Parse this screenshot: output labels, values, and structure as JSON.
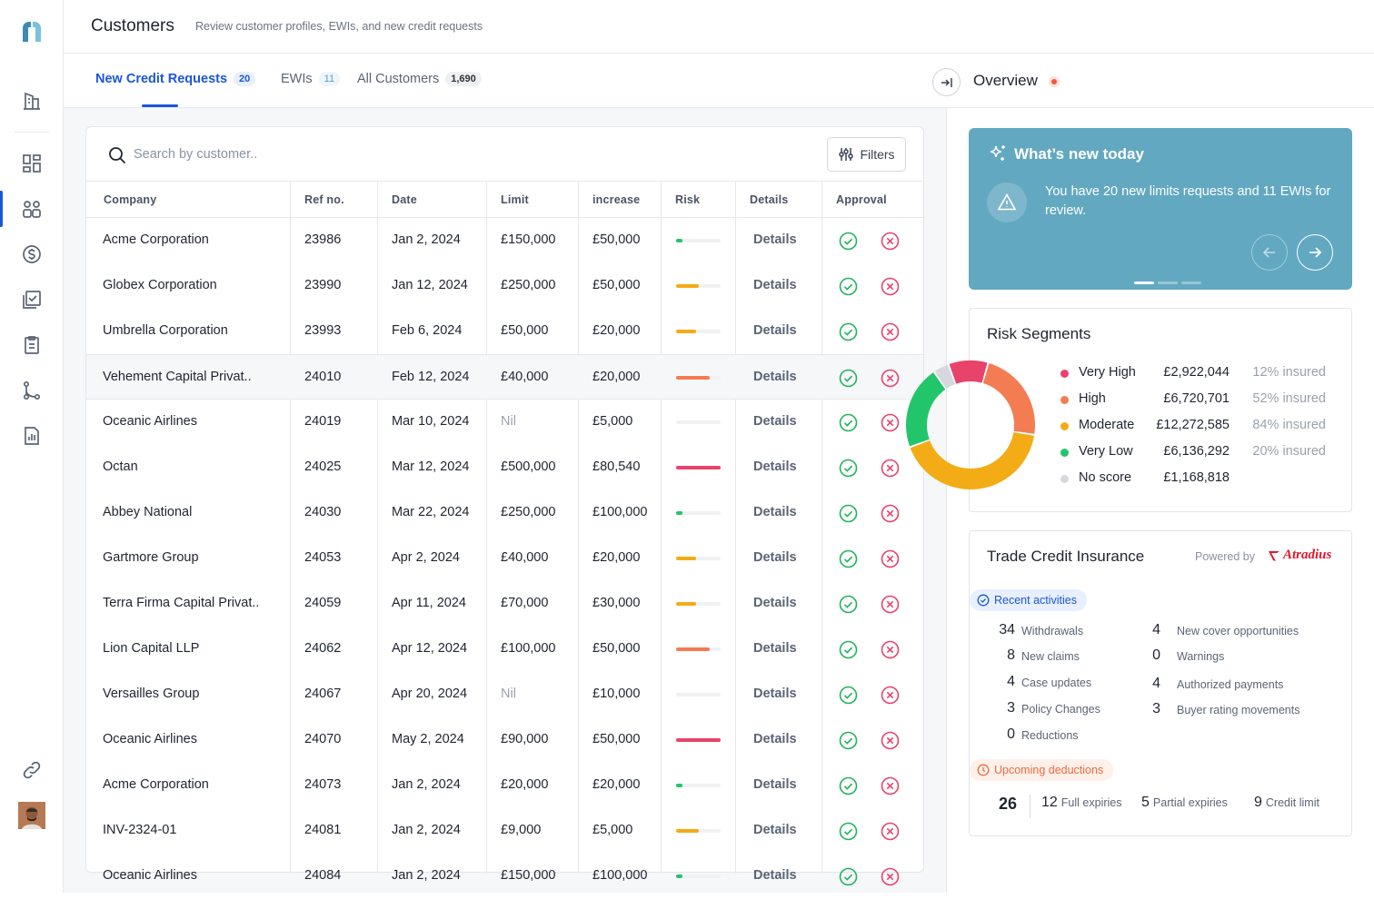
{
  "header": {
    "title": "Customers",
    "subtitle": "Review customer profiles, EWIs, and new credit requests"
  },
  "tabs": [
    {
      "label": "New Credit Requests",
      "count": "20",
      "active": true
    },
    {
      "label": "EWIs",
      "count": "11",
      "active": false
    },
    {
      "label": "All Customers",
      "count": "1,690",
      "active": false
    }
  ],
  "search": {
    "placeholder": "Search by customer..",
    "value": ""
  },
  "filters_label": "Filters",
  "table": {
    "columns": [
      "Company",
      "Ref no.",
      "Date",
      "Limit",
      "increase",
      "Risk",
      "Details",
      "Approval"
    ],
    "details_label": "Details",
    "rows": [
      {
        "company": "Acme Corporation",
        "ref": "23986",
        "date": "Jan 2, 2024",
        "limit": "£150,000",
        "increase": "£50,000",
        "risk": "very-low",
        "risk_level": 0.15
      },
      {
        "company": "Globex Corporation",
        "ref": "23990",
        "date": "Jan 12, 2024",
        "limit": "£250,000",
        "increase": "£50,000",
        "risk": "moderate",
        "risk_level": 0.5
      },
      {
        "company": "Umbrella Corporation",
        "ref": "23993",
        "date": "Feb 6, 2024",
        "limit": "£50,000",
        "increase": "£20,000",
        "risk": "moderate",
        "risk_level": 0.45
      },
      {
        "company": "Vehement Capital Privat..",
        "ref": "24010",
        "date": "Feb 12, 2024",
        "limit": "£40,000",
        "increase": "£20,000",
        "risk": "high",
        "risk_level": 0.75,
        "highlight": true
      },
      {
        "company": "Oceanic Airlines",
        "ref": "24019",
        "date": "Mar 10, 2024",
        "limit": "Nil",
        "increase": "£5,000",
        "risk": "none",
        "risk_level": 0
      },
      {
        "company": "Octan",
        "ref": "24025",
        "date": "Mar 12, 2024",
        "limit": "£500,000",
        "increase": "£80,540",
        "risk": "very-high",
        "risk_level": 1
      },
      {
        "company": "Abbey National",
        "ref": "24030",
        "date": "Mar 22, 2024",
        "limit": "£250,000",
        "increase": "£100,000",
        "risk": "very-low",
        "risk_level": 0.15
      },
      {
        "company": "Gartmore Group",
        "ref": "24053",
        "date": "Apr 2, 2024",
        "limit": "£40,000",
        "increase": "£20,000",
        "risk": "moderate",
        "risk_level": 0.45
      },
      {
        "company": "Terra Firma Capital Privat..",
        "ref": "24059",
        "date": "Apr 11, 2024",
        "limit": "£70,000",
        "increase": "£30,000",
        "risk": "moderate",
        "risk_level": 0.45
      },
      {
        "company": "Lion Capital LLP",
        "ref": "24062",
        "date": "Apr 12, 2024",
        "limit": "£100,000",
        "increase": "£50,000",
        "risk": "high",
        "risk_level": 0.75
      },
      {
        "company": "Versailles Group",
        "ref": "24067",
        "date": "Apr 20, 2024",
        "limit": "Nil",
        "increase": "£10,000",
        "risk": "none",
        "risk_level": 0
      },
      {
        "company": "Oceanic Airlines",
        "ref": "24070",
        "date": "May 2, 2024",
        "limit": "£90,000",
        "increase": "£50,000",
        "risk": "very-high",
        "risk_level": 1
      },
      {
        "company": "Acme Corporation",
        "ref": "24073",
        "date": "Jan 2, 2024",
        "limit": "£20,000",
        "increase": "£20,000",
        "risk": "very-low",
        "risk_level": 0.15
      },
      {
        "company": "INV-2324-01",
        "ref": "24081",
        "date": "Jan 2, 2024",
        "limit": "£9,000",
        "increase": "£5,000",
        "risk": "moderate",
        "risk_level": 0.5
      },
      {
        "company": "Oceanic Airlines",
        "ref": "24084",
        "date": "Jan 2, 2024",
        "limit": "£150,000",
        "increase": "£100,000",
        "risk": "very-low",
        "risk_level": 0.15
      }
    ]
  },
  "risk_colors": {
    "very-high": "#e8436a",
    "high": "#f47c52",
    "moderate": "#f3ac16",
    "very-low": "#22c56a",
    "none": "#f0f1f3"
  },
  "overview": {
    "title": "Overview",
    "whats_new": {
      "title": "What’s new today",
      "message": "You have 20 new limits requests and 11 EWIs for review."
    },
    "risk_segments": {
      "title": "Risk Segments",
      "items": [
        {
          "name": "Very High",
          "amount": "£2,922,044",
          "insured": "12% insured",
          "color": "#e8436a",
          "value": 2922044
        },
        {
          "name": "High",
          "amount": "£6,720,701",
          "insured": "52% insured",
          "color": "#f47c52",
          "value": 6720701
        },
        {
          "name": "Moderate",
          "amount": "£12,272,585",
          "insured": "84% insured",
          "color": "#f3ac16",
          "value": 12272585
        },
        {
          "name": "Very Low",
          "amount": "£6,136,292",
          "insured": "20% insured",
          "color": "#22c56a",
          "value": 6136292
        },
        {
          "name": "No score",
          "amount": "£1,168,818",
          "insured": "",
          "color": "#d6d8de",
          "value": 1168818
        }
      ]
    },
    "tci": {
      "title": "Trade Credit Insurance",
      "powered_by": "Powered by",
      "provider": "Atradius",
      "recent_label": "Recent activities",
      "activities_left": [
        {
          "n": "34",
          "label": "Withdrawals"
        },
        {
          "n": "8",
          "label": "New claims"
        },
        {
          "n": "4",
          "label": "Case updates"
        },
        {
          "n": "3",
          "label": "Policy Changes"
        },
        {
          "n": "0",
          "label": "Reductions"
        }
      ],
      "activities_right": [
        {
          "n": "4",
          "label": "New cover opportunities"
        },
        {
          "n": "0",
          "label": "Warnings"
        },
        {
          "n": "4",
          "label": "Authorized payments"
        },
        {
          "n": "3",
          "label": "Buyer rating movements"
        }
      ],
      "upcoming_label": "Upcoming deductions",
      "deductions_total": "26",
      "deductions": [
        {
          "n": "12",
          "label": "Full expiries"
        },
        {
          "n": "5",
          "label": "Partial expiries"
        },
        {
          "n": "9",
          "label": "Credit limit"
        }
      ]
    }
  },
  "sidebar_icons": [
    "logo-icon",
    "building-icon",
    "dashboard-icon",
    "customers-icon",
    "dollar-icon",
    "checklist-icon",
    "clipboard-icon",
    "workflow-icon",
    "report-icon",
    "link-icon"
  ]
}
